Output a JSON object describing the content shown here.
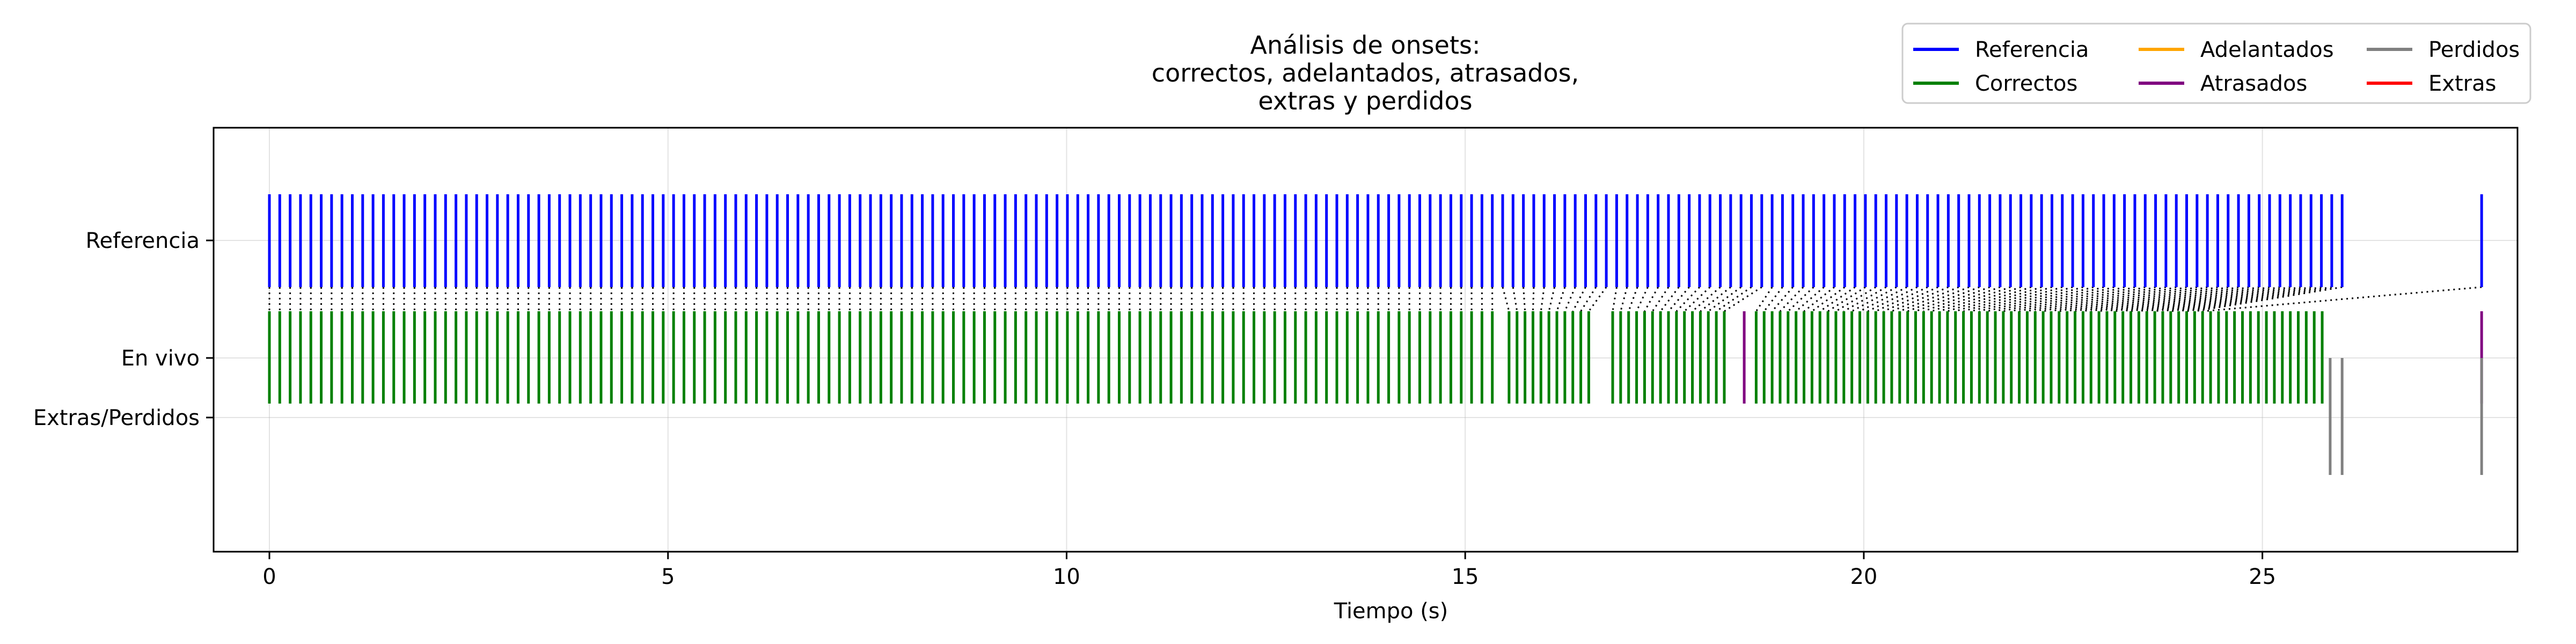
{
  "chart_data": {
    "type": "event",
    "title_lines": [
      "Análisis de onsets:",
      "correctos, adelantados, atrasados,",
      "extras y perdidos"
    ],
    "xlabel": "Tiempo (s)",
    "ylabel": "",
    "xlim": [
      -0.7,
      28.2
    ],
    "xticks": [
      0,
      5,
      10,
      15,
      20,
      25
    ],
    "y_categories": [
      "Referencia",
      "En vivo",
      "Extras/Perdidos"
    ],
    "grid": true,
    "legend": {
      "placement": "top-right",
      "columns": 3,
      "entries": [
        {
          "key": "reference",
          "label": "Referencia",
          "color": "#0000ff"
        },
        {
          "key": "correct",
          "label": "Correctos",
          "color": "#008000"
        },
        {
          "key": "early",
          "label": "Adelantados",
          "color": "#ffa500"
        },
        {
          "key": "late",
          "label": "Atrasados",
          "color": "#800080"
        },
        {
          "key": "missed",
          "label": "Perdidos",
          "color": "#808080"
        },
        {
          "key": "extra",
          "label": "Extras",
          "color": "#ff0000"
        }
      ]
    },
    "series": {
      "reference_onsets": [
        0.0,
        0.13,
        0.26,
        0.39,
        0.52,
        0.65,
        0.78,
        0.91,
        1.04,
        1.17,
        1.3,
        1.43,
        1.56,
        1.69,
        1.82,
        1.95,
        2.08,
        2.21,
        2.34,
        2.47,
        2.6,
        2.73,
        2.86,
        2.99,
        3.12,
        3.25,
        3.38,
        3.51,
        3.64,
        3.77,
        3.9,
        4.03,
        4.16,
        4.29,
        4.42,
        4.55,
        4.68,
        4.81,
        4.94,
        5.07,
        5.2,
        5.33,
        5.46,
        5.59,
        5.72,
        5.85,
        5.98,
        6.11,
        6.24,
        6.37,
        6.5,
        6.63,
        6.76,
        6.89,
        7.02,
        7.15,
        7.28,
        7.41,
        7.54,
        7.67,
        7.8,
        7.93,
        8.06,
        8.19,
        8.32,
        8.45,
        8.58,
        8.71,
        8.84,
        8.97,
        9.1,
        9.23,
        9.36,
        9.49,
        9.62,
        9.75,
        9.88,
        10.01,
        10.14,
        10.27,
        10.4,
        10.53,
        10.66,
        10.79,
        10.92,
        11.05,
        11.18,
        11.31,
        11.44,
        11.57,
        11.7,
        11.83,
        11.96,
        12.09,
        12.22,
        12.35,
        12.48,
        12.61,
        12.74,
        12.87,
        13.0,
        13.13,
        13.26,
        13.39,
        13.52,
        13.65,
        13.78,
        13.91,
        14.04,
        14.17,
        14.3,
        14.43,
        14.56,
        14.69,
        14.82,
        14.95,
        15.08,
        15.21,
        15.34,
        15.47,
        15.6,
        15.73,
        15.86,
        15.99,
        16.12,
        16.25,
        16.38,
        16.51,
        16.64,
        16.77,
        16.9,
        17.03,
        17.16,
        17.29,
        17.42,
        17.55,
        17.68,
        17.81,
        17.94,
        18.07,
        18.2,
        18.33,
        18.46,
        18.59,
        18.72,
        18.85,
        18.98,
        19.11,
        19.24,
        19.37,
        19.5,
        19.63,
        19.76,
        19.89,
        20.02,
        20.15,
        20.28,
        20.41,
        20.54,
        20.67,
        20.8,
        20.93,
        21.06,
        21.19,
        21.32,
        21.45,
        21.58,
        21.71,
        21.84,
        21.97,
        22.1,
        22.23,
        22.36,
        22.49,
        22.62,
        22.75,
        22.88,
        23.01,
        23.14,
        23.27,
        23.4,
        23.53,
        23.66,
        23.79,
        23.92,
        24.05,
        24.18,
        24.31,
        24.44,
        24.57,
        24.7,
        24.83,
        24.96,
        25.09,
        25.22,
        25.35,
        25.48,
        25.61,
        25.74,
        25.87,
        26.0,
        27.75
      ],
      "correct_onsets": [
        0.0,
        0.13,
        0.26,
        0.39,
        0.52,
        0.65,
        0.78,
        0.91,
        1.04,
        1.17,
        1.3,
        1.43,
        1.56,
        1.69,
        1.82,
        1.95,
        2.08,
        2.21,
        2.34,
        2.47,
        2.6,
        2.73,
        2.86,
        2.99,
        3.12,
        3.25,
        3.38,
        3.51,
        3.64,
        3.77,
        3.9,
        4.03,
        4.16,
        4.29,
        4.42,
        4.55,
        4.68,
        4.81,
        4.94,
        5.07,
        5.2,
        5.33,
        5.46,
        5.59,
        5.72,
        5.85,
        5.98,
        6.11,
        6.24,
        6.37,
        6.5,
        6.63,
        6.76,
        6.89,
        7.02,
        7.15,
        7.28,
        7.41,
        7.54,
        7.67,
        7.8,
        7.93,
        8.06,
        8.19,
        8.32,
        8.45,
        8.58,
        8.71,
        8.84,
        8.97,
        9.1,
        9.23,
        9.36,
        9.49,
        9.62,
        9.75,
        9.88,
        10.01,
        10.14,
        10.27,
        10.4,
        10.53,
        10.66,
        10.79,
        10.92,
        11.05,
        11.18,
        11.31,
        11.44,
        11.57,
        11.7,
        11.83,
        11.96,
        12.09,
        12.22,
        12.35,
        12.48,
        12.61,
        12.74,
        12.87,
        13.0,
        13.13,
        13.26,
        13.39,
        13.52,
        13.65,
        13.78,
        13.91,
        14.04,
        14.17,
        14.3,
        14.43,
        14.56,
        14.69,
        14.82,
        14.95,
        15.08,
        15.21,
        15.34,
        15.55,
        15.65,
        15.75,
        15.85,
        15.95,
        16.05,
        16.15,
        16.25,
        16.35,
        16.45,
        16.55,
        16.85,
        16.95,
        17.05,
        17.15,
        17.25,
        17.35,
        17.45,
        17.55,
        17.65,
        17.75,
        17.85,
        17.95,
        18.05,
        18.15,
        18.25,
        18.65,
        18.75,
        18.85,
        18.95,
        19.05,
        19.15,
        19.25,
        19.35,
        19.45,
        19.55,
        19.65,
        19.75,
        19.85,
        19.95,
        20.05,
        20.15,
        20.25,
        20.35,
        20.45,
        20.55,
        20.65,
        20.75,
        20.85,
        20.95,
        21.05,
        21.15,
        21.25,
        21.35,
        21.45,
        21.55,
        21.65,
        21.75,
        21.85,
        21.95,
        22.05,
        22.15,
        22.25,
        22.35,
        22.45,
        22.55,
        22.65,
        22.75,
        22.85,
        22.95,
        23.05,
        23.15,
        23.25,
        23.35,
        23.45,
        23.55,
        23.65,
        23.75,
        23.85,
        23.95,
        24.05,
        24.15,
        24.25,
        24.35,
        24.45,
        24.55,
        24.65,
        24.75,
        24.85,
        24.95,
        25.05,
        25.15,
        25.25,
        25.35,
        25.45,
        25.55,
        25.65,
        25.75
      ],
      "late_onsets": [
        18.5,
        27.75
      ],
      "early_onsets": [],
      "extra_onsets": [],
      "missed_onsets": [
        25.85,
        26.0,
        27.75
      ]
    }
  }
}
